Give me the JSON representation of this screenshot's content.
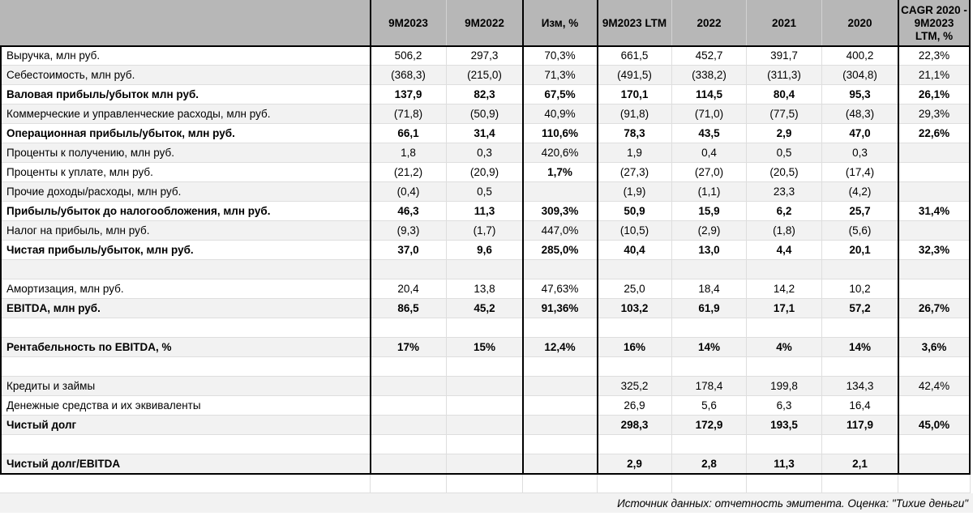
{
  "table": {
    "columns": [
      {
        "label": ""
      },
      {
        "label": "9М2023"
      },
      {
        "label": "9М2022"
      },
      {
        "label": "Изм, %"
      },
      {
        "label": "9М2023 LTM"
      },
      {
        "label": "2022"
      },
      {
        "label": "2021"
      },
      {
        "label": "2020"
      },
      {
        "label": "CAGR 2020 - 9М2023 LTM, %"
      }
    ],
    "rows": [
      {
        "label": "Выручка, млн руб.",
        "bold": false,
        "values": [
          "506,2",
          "297,3",
          "70,3%",
          "661,5",
          "452,7",
          "391,7",
          "400,2",
          "22,3%"
        ]
      },
      {
        "label": "Себестоимость, млн руб.",
        "bold": false,
        "values": [
          "(368,3)",
          "(215,0)",
          "71,3%",
          "(491,5)",
          "(338,2)",
          "(311,3)",
          "(304,8)",
          "21,1%"
        ]
      },
      {
        "label": "Валовая прибыль/убыток млн руб.",
        "bold": true,
        "values": [
          "137,9",
          "82,3",
          "67,5%",
          "170,1",
          "114,5",
          "80,4",
          "95,3",
          "26,1%"
        ]
      },
      {
        "label": "Коммерческие и управленческие расходы, млн руб.",
        "bold": false,
        "values": [
          "(71,8)",
          "(50,9)",
          "40,9%",
          "(91,8)",
          "(71,0)",
          "(77,5)",
          "(48,3)",
          "29,3%"
        ]
      },
      {
        "label": "Операционная прибыль/убыток, млн руб.",
        "bold": true,
        "values": [
          "66,1",
          "31,4",
          "110,6%",
          "78,3",
          "43,5",
          "2,9",
          "47,0",
          "22,6%"
        ]
      },
      {
        "label": "Проценты к получению, млн руб.",
        "bold": false,
        "values": [
          "1,8",
          "0,3",
          "420,6%",
          "1,9",
          "0,4",
          "0,5",
          "0,3",
          ""
        ]
      },
      {
        "label": "Проценты к уплате, млн руб.",
        "bold": false,
        "bold_cells": [
          2
        ],
        "values": [
          "(21,2)",
          "(20,9)",
          "1,7%",
          "(27,3)",
          "(27,0)",
          "(20,5)",
          "(17,4)",
          ""
        ]
      },
      {
        "label": "Прочие доходы/расходы, млн руб.",
        "bold": false,
        "values": [
          "(0,4)",
          "0,5",
          "",
          "(1,9)",
          "(1,1)",
          "23,3",
          "(4,2)",
          ""
        ]
      },
      {
        "label": "Прибыль/убыток до налогообложения, млн руб.",
        "bold": true,
        "values": [
          "46,3",
          "11,3",
          "309,3%",
          "50,9",
          "15,9",
          "6,2",
          "25,7",
          "31,4%"
        ]
      },
      {
        "label": "Налог на прибыль, млн руб.",
        "bold": false,
        "values": [
          "(9,3)",
          "(1,7)",
          "447,0%",
          "(10,5)",
          "(2,9)",
          "(1,8)",
          "(5,6)",
          ""
        ]
      },
      {
        "label": "Чистая прибыль/убыток, млн руб.",
        "bold": true,
        "values": [
          "37,0",
          "9,6",
          "285,0%",
          "40,4",
          "13,0",
          "4,4",
          "20,1",
          "32,3%"
        ]
      },
      {
        "label": "",
        "bold": false,
        "values": [
          "",
          "",
          "",
          "",
          "",
          "",
          "",
          ""
        ]
      },
      {
        "label": "Амортизация, млн руб.",
        "bold": false,
        "values": [
          "20,4",
          "13,8",
          "47,63%",
          "25,0",
          "18,4",
          "14,2",
          "10,2",
          ""
        ]
      },
      {
        "label": "EBITDA, млн руб.",
        "bold": true,
        "values": [
          "86,5",
          "45,2",
          "91,36%",
          "103,2",
          "61,9",
          "17,1",
          "57,2",
          "26,7%"
        ]
      },
      {
        "label": "",
        "bold": false,
        "values": [
          "",
          "",
          "",
          "",
          "",
          "",
          "",
          ""
        ]
      },
      {
        "label": "Рентабельность по EBITDA, %",
        "bold": true,
        "values": [
          "17%",
          "15%",
          "12,4%",
          "16%",
          "14%",
          "4%",
          "14%",
          "3,6%"
        ]
      },
      {
        "label": "",
        "bold": false,
        "values": [
          "",
          "",
          "",
          "",
          "",
          "",
          "",
          ""
        ]
      },
      {
        "label": "Кредиты и займы",
        "bold": false,
        "values": [
          "",
          "",
          "",
          "325,2",
          "178,4",
          "199,8",
          "134,3",
          "42,4%"
        ]
      },
      {
        "label": "Денежные средства и их эквиваленты",
        "bold": false,
        "values": [
          "",
          "",
          "",
          "26,9",
          "5,6",
          "6,3",
          "16,4",
          ""
        ]
      },
      {
        "label": "Чистый долг",
        "bold": true,
        "values": [
          "",
          "",
          "",
          "298,3",
          "172,9",
          "193,5",
          "117,9",
          "45,0%"
        ]
      },
      {
        "label": "",
        "bold": false,
        "values": [
          "",
          "",
          "",
          "",
          "",
          "",
          "",
          ""
        ]
      },
      {
        "label": "Чистый долг/EBITDA",
        "bold": true,
        "values": [
          "",
          "",
          "",
          "2,9",
          "2,8",
          "11,3",
          "2,1",
          ""
        ]
      },
      {
        "label": "",
        "bold": false,
        "values": [
          "",
          "",
          "",
          "",
          "",
          "",
          "",
          ""
        ]
      }
    ],
    "footer_note": "Источник данных: отчетность эмитента. Оценка: \"Тихие деньги\""
  },
  "colors": {
    "header_bg": "#b7b7b7",
    "band_bg": "#f2f2f2",
    "gridline": "#dedede",
    "border_black": "#000000"
  }
}
